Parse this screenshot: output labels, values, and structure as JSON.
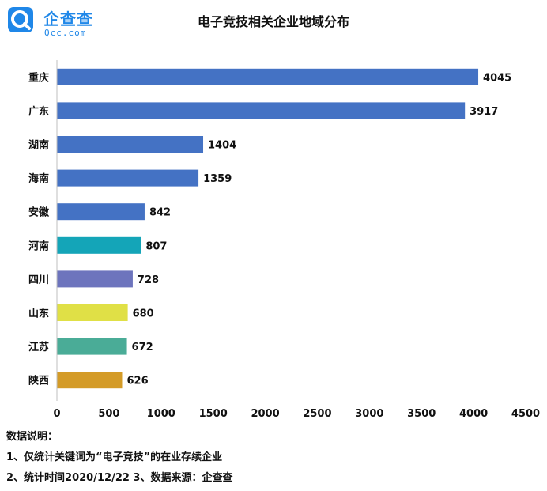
{
  "logo": {
    "cn": "企查查",
    "en": "Qcc.com"
  },
  "chart_data": {
    "type": "bar",
    "orientation": "horizontal",
    "title": "电子竞技相关企业地域分布",
    "categories": [
      "重庆",
      "广东",
      "湖南",
      "海南",
      "安徽",
      "河南",
      "四川",
      "山东",
      "江苏",
      "陕西"
    ],
    "values": [
      4045,
      3917,
      1404,
      1359,
      842,
      807,
      728,
      680,
      672,
      626
    ],
    "colors": [
      "#4472c4",
      "#4472c4",
      "#4472c4",
      "#4472c4",
      "#4472c4",
      "#14a5b8",
      "#6d74bd",
      "#e0e046",
      "#4aac97",
      "#d49b27"
    ],
    "xlim": [
      0,
      4500
    ],
    "xticks": [
      "0",
      "500",
      "1000",
      "1500",
      "2000",
      "2500",
      "3000",
      "3500",
      "4000",
      "4500"
    ],
    "grid": false,
    "legend": "none"
  },
  "notes": {
    "heading": "数据说明：",
    "line1": "1、仅统计关键词为“电子竞技”的在业存续企业",
    "line2": "2、统计时间2020/12/22   3、数据来源：企查查"
  }
}
